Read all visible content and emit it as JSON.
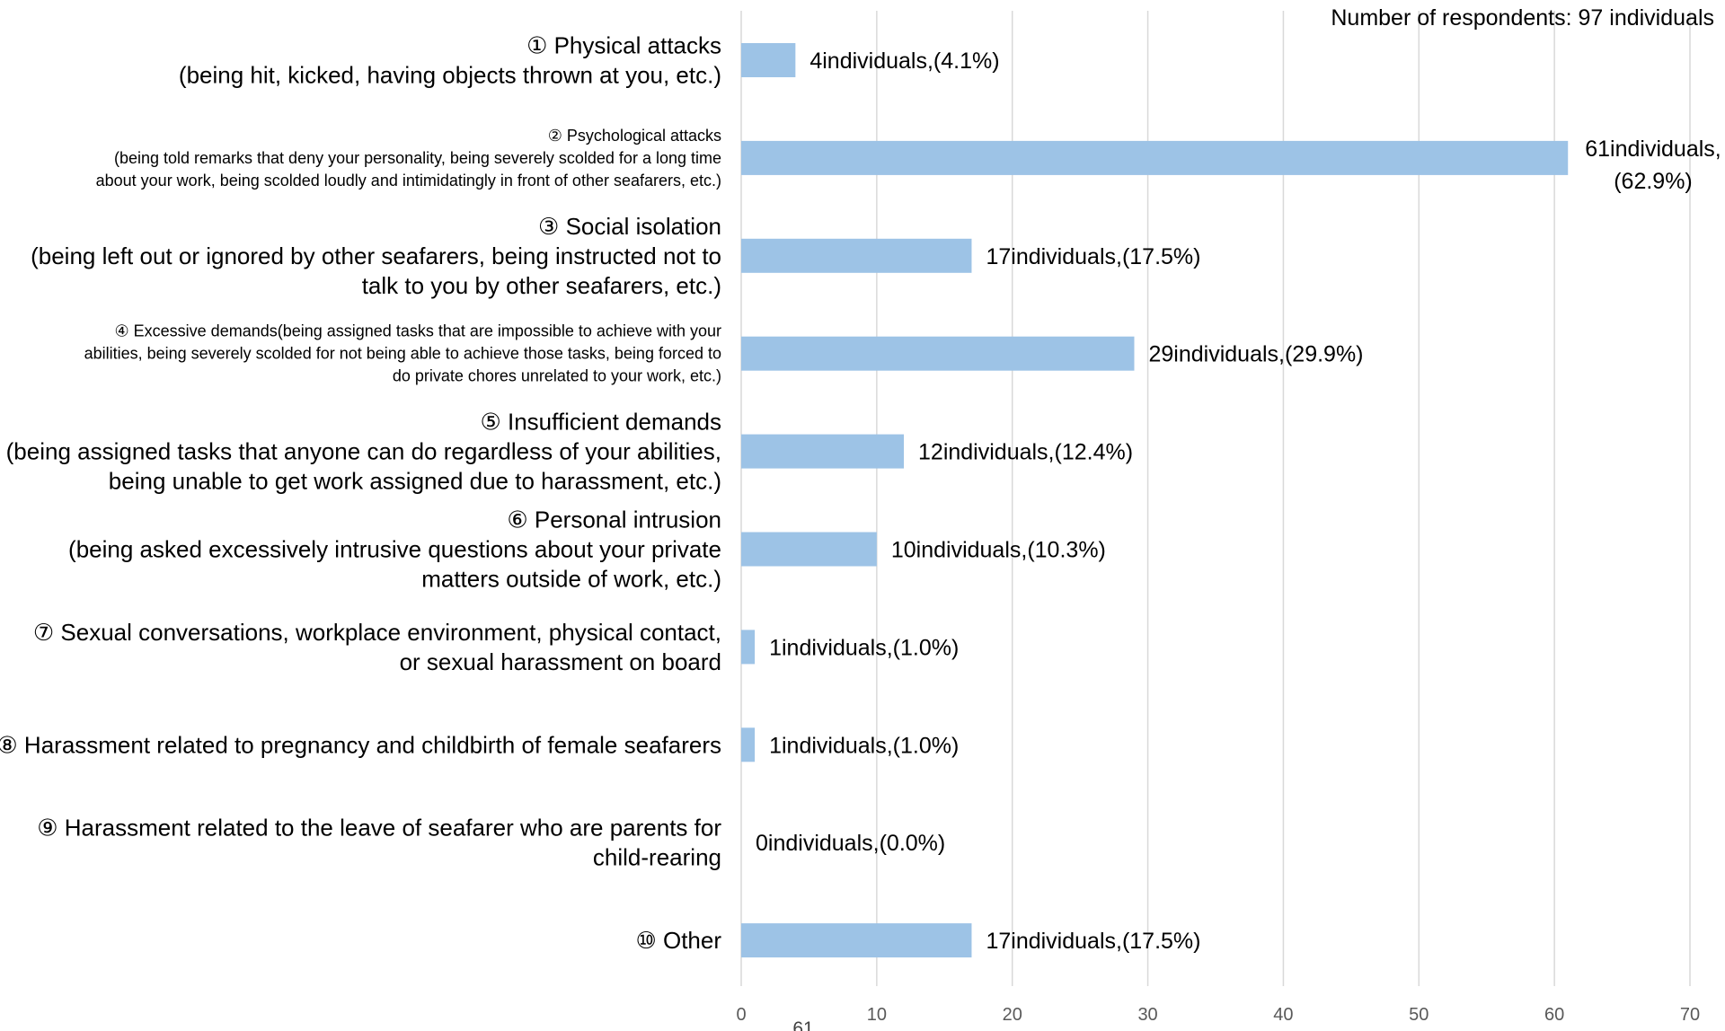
{
  "chart_data": {
    "type": "bar",
    "orientation": "horizontal",
    "note": "Number of respondents: 97 individuals",
    "categories": [
      [
        "① Physical attacks",
        "(being hit, kicked, having objects thrown at you, etc.)"
      ],
      [
        "② Psychological attacks",
        "(being told remarks that deny your personality, being severely scolded for a long time",
        "about your work, being scolded loudly and intimidatingly in front of other seafarers, etc.)"
      ],
      [
        "③ Social isolation",
        "(being left out or ignored by other seafarers, being instructed not to",
        "talk to you by other seafarers, etc.)"
      ],
      [
        "④ Excessive demands(being assigned tasks that are impossible to achieve with your",
        "abilities, being severely scolded for not being able to achieve those tasks, being forced to",
        "do private chores unrelated to your work, etc.)"
      ],
      [
        "⑤ Insufficient demands",
        "(being assigned tasks that anyone can do regardless of your abilities,",
        "being unable to get work assigned due to harassment, etc.)"
      ],
      [
        "⑥ Personal intrusion",
        "(being asked excessively intrusive questions about your private",
        "matters outside of work, etc.)"
      ],
      [
        "⑦ Sexual conversations, workplace environment, physical contact,",
        "or sexual harassment on board"
      ],
      [
        "⑧ Harassment related to pregnancy and childbirth of female seafarers"
      ],
      [
        "⑨ Harassment related to the leave of seafarer who are parents for",
        "child-rearing"
      ],
      [
        "⑩ Other"
      ]
    ],
    "category_label_size": [
      "big",
      "small",
      "big",
      "small",
      "big",
      "big",
      "big",
      "big",
      "big",
      "big"
    ],
    "values": [
      4,
      61,
      17,
      29,
      12,
      10,
      1,
      1,
      0,
      17
    ],
    "data_labels": [
      [
        "4individuals,(4.1%)"
      ],
      [
        "61individuals,",
        "(62.9%)"
      ],
      [
        "17individuals,(17.5%)"
      ],
      [
        "29individuals,(29.9%)"
      ],
      [
        "12individuals,(12.4%)"
      ],
      [
        "10individuals,(10.3%)"
      ],
      [
        "1individuals,(1.0%)"
      ],
      [
        "1individuals,(1.0%)"
      ],
      [
        "0individuals,(0.0%)"
      ],
      [
        "17individuals,(17.5%)"
      ]
    ],
    "xlim": [
      0,
      70
    ],
    "xticks": [
      0,
      10,
      20,
      30,
      40,
      50,
      60,
      70
    ],
    "xtick_labels": [
      "0",
      "10",
      "20",
      "30",
      "40",
      "50",
      "60",
      "70"
    ],
    "stray_text": "61",
    "grid": true,
    "bar_color": "#9DC3E6",
    "grid_color": "#D9D9D9"
  }
}
